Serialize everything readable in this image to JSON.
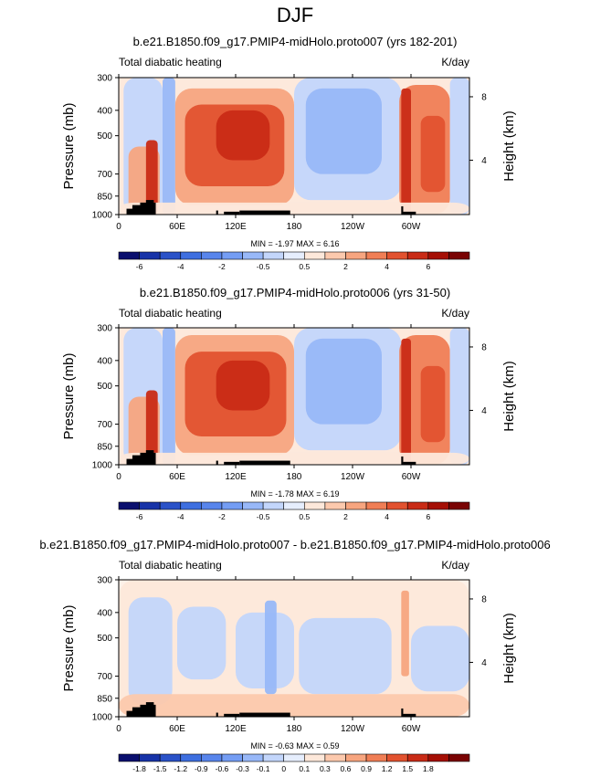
{
  "figure_title": "DJF",
  "chart_data": [
    {
      "type": "heatmap",
      "title": "b.e21.B1850.f09_g17.PMIP4-midHolo.proto007 (yrs 182-201)",
      "left_string": "Total diabatic heating",
      "right_string": "K/day",
      "ylabel": "Pressure (mb)",
      "ylabel_right": "Height (km)",
      "xticks": [
        "0",
        "60E",
        "120E",
        "180",
        "120W",
        "60W"
      ],
      "yticks": [
        "300",
        "400",
        "500",
        "700",
        "850",
        "1000"
      ],
      "yticks_right": [
        "8",
        "4"
      ],
      "stats": "MIN = -1.97  MAX =  6.16",
      "colorbar_labels": [
        "-6",
        "-4",
        "-2",
        "-0.5",
        "0.5",
        "2",
        "4",
        "6"
      ],
      "xlim": [
        0,
        360
      ],
      "ylim": [
        1000,
        300
      ],
      "min": -1.97,
      "max": 6.16,
      "features": [
        {
          "lon": [
            5,
            45
          ],
          "p": [
            300,
            1000
          ],
          "value": -0.8
        },
        {
          "lon": [
            10,
            42
          ],
          "p": [
            550,
            1000
          ],
          "value": 1.5
        },
        {
          "lon": [
            28,
            40
          ],
          "p": [
            520,
            1000
          ],
          "value": 4.0
        },
        {
          "lon": [
            45,
            58
          ],
          "p": [
            300,
            1000
          ],
          "value": -1.2
        },
        {
          "lon": [
            58,
            180
          ],
          "p": [
            330,
            920
          ],
          "value": 1.5
        },
        {
          "lon": [
            68,
            170
          ],
          "p": [
            380,
            780
          ],
          "value": 3.0
        },
        {
          "lon": [
            100,
            155
          ],
          "p": [
            400,
            620
          ],
          "value": 4.5
        },
        {
          "lon": [
            180,
            290
          ],
          "p": [
            300,
            880
          ],
          "value": -0.6
        },
        {
          "lon": [
            192,
            270
          ],
          "p": [
            330,
            700
          ],
          "value": -1.3
        },
        {
          "lon": [
            288,
            340
          ],
          "p": [
            320,
            1000
          ],
          "value": 2.0
        },
        {
          "lon": [
            290,
            300
          ],
          "p": [
            330,
            1000
          ],
          "value": 4.5
        },
        {
          "lon": [
            310,
            335
          ],
          "p": [
            420,
            820
          ],
          "value": 3.0
        },
        {
          "lon": [
            340,
            360
          ],
          "p": [
            300,
            1000
          ],
          "value": -0.7
        },
        {
          "lon": [
            0,
            360
          ],
          "p": [
            900,
            1000
          ],
          "value": 0.4
        }
      ]
    },
    {
      "type": "heatmap",
      "title": "b.e21.B1850.f09_g17.PMIP4-midHolo.proto006 (yrs 31-50)",
      "left_string": "Total diabatic heating",
      "right_string": "K/day",
      "ylabel": "Pressure (mb)",
      "ylabel_right": "Height (km)",
      "xticks": [
        "0",
        "60E",
        "120E",
        "180",
        "120W",
        "60W"
      ],
      "yticks": [
        "300",
        "400",
        "500",
        "700",
        "850",
        "1000"
      ],
      "yticks_right": [
        "8",
        "4"
      ],
      "stats": "MIN = -1.78  MAX =  6.19",
      "colorbar_labels": [
        "-6",
        "-4",
        "-2",
        "-0.5",
        "0.5",
        "2",
        "4",
        "6"
      ],
      "xlim": [
        0,
        360
      ],
      "ylim": [
        1000,
        300
      ],
      "min": -1.78,
      "max": 6.19,
      "features": [
        {
          "lon": [
            5,
            45
          ],
          "p": [
            300,
            1000
          ],
          "value": -0.8
        },
        {
          "lon": [
            10,
            42
          ],
          "p": [
            550,
            1000
          ],
          "value": 1.5
        },
        {
          "lon": [
            28,
            40
          ],
          "p": [
            520,
            1000
          ],
          "value": 4.0
        },
        {
          "lon": [
            45,
            58
          ],
          "p": [
            300,
            1000
          ],
          "value": -1.2
        },
        {
          "lon": [
            58,
            180
          ],
          "p": [
            320,
            920
          ],
          "value": 1.6
        },
        {
          "lon": [
            68,
            172
          ],
          "p": [
            370,
            780
          ],
          "value": 3.1
        },
        {
          "lon": [
            100,
            155
          ],
          "p": [
            400,
            620
          ],
          "value": 4.6
        },
        {
          "lon": [
            180,
            290
          ],
          "p": [
            300,
            880
          ],
          "value": -0.6
        },
        {
          "lon": [
            192,
            270
          ],
          "p": [
            330,
            700
          ],
          "value": -1.3
        },
        {
          "lon": [
            288,
            340
          ],
          "p": [
            320,
            1000
          ],
          "value": 2.0
        },
        {
          "lon": [
            290,
            300
          ],
          "p": [
            330,
            1000
          ],
          "value": 4.5
        },
        {
          "lon": [
            310,
            335
          ],
          "p": [
            420,
            820
          ],
          "value": 3.0
        },
        {
          "lon": [
            340,
            360
          ],
          "p": [
            300,
            1000
          ],
          "value": -0.7
        },
        {
          "lon": [
            0,
            360
          ],
          "p": [
            900,
            1000
          ],
          "value": 0.4
        }
      ]
    },
    {
      "type": "heatmap",
      "title": "b.e21.B1850.f09_g17.PMIP4-midHolo.proto007 - b.e21.B1850.f09_g17.PMIP4-midHolo.proto006",
      "left_string": "Total diabatic heating",
      "right_string": "K/day",
      "ylabel": "Pressure (mb)",
      "ylabel_right": "Height (km)",
      "xticks": [
        "0",
        "60E",
        "120E",
        "180",
        "120W",
        "60W"
      ],
      "yticks": [
        "300",
        "400",
        "500",
        "700",
        "850",
        "1000"
      ],
      "yticks_right": [
        "8",
        "4"
      ],
      "stats": "MIN = -0.63  MAX =  0.59",
      "colorbar_labels": [
        "-1.8",
        "-1.5",
        "-1.2",
        "-0.9",
        "-0.6",
        "-0.3",
        "-0.1",
        "0",
        "0.1",
        "0.3",
        "0.6",
        "0.9",
        "1.2",
        "1.5",
        "1.8"
      ],
      "xlim": [
        0,
        360
      ],
      "ylim": [
        1000,
        300
      ],
      "min": -0.63,
      "max": 0.59,
      "features": [
        {
          "lon": [
            0,
            360
          ],
          "p": [
            300,
            1000
          ],
          "value": 0.05
        },
        {
          "lon": [
            10,
            55
          ],
          "p": [
            350,
            900
          ],
          "value": -0.15
        },
        {
          "lon": [
            60,
            110
          ],
          "p": [
            380,
            720
          ],
          "value": -0.2
        },
        {
          "lon": [
            120,
            180
          ],
          "p": [
            400,
            780
          ],
          "value": -0.3
        },
        {
          "lon": [
            150,
            162
          ],
          "p": [
            360,
            820
          ],
          "value": -0.5
        },
        {
          "lon": [
            185,
            280
          ],
          "p": [
            420,
            820
          ],
          "value": -0.2
        },
        {
          "lon": [
            290,
            298
          ],
          "p": [
            330,
            700
          ],
          "value": 0.3
        },
        {
          "lon": [
            300,
            360
          ],
          "p": [
            450,
            800
          ],
          "value": -0.15
        },
        {
          "lon": [
            0,
            360
          ],
          "p": [
            820,
            1000
          ],
          "value": 0.15
        }
      ]
    }
  ],
  "colors": {
    "levels_main": [
      -6,
      -5,
      -4,
      -3,
      -2,
      -1,
      -0.5,
      0,
      0.5,
      1,
      2,
      3,
      4,
      5,
      6
    ],
    "levels_diff": [
      -1.8,
      -1.5,
      -1.2,
      -0.9,
      -0.6,
      -0.3,
      -0.1,
      0,
      0.1,
      0.3,
      0.6,
      0.9,
      1.2,
      1.5,
      1.8
    ],
    "palette": [
      "#0a0f6e",
      "#1733a8",
      "#2a52c8",
      "#3e6fe0",
      "#5885ec",
      "#749df4",
      "#98b8f8",
      "#c3d6fb",
      "#e6eefd",
      "#fde8da",
      "#fcc9ad",
      "#f7a57f",
      "#f07e55",
      "#e2522f",
      "#c92b16",
      "#a50f05",
      "#7a0303"
    ],
    "topography": "#000000"
  }
}
